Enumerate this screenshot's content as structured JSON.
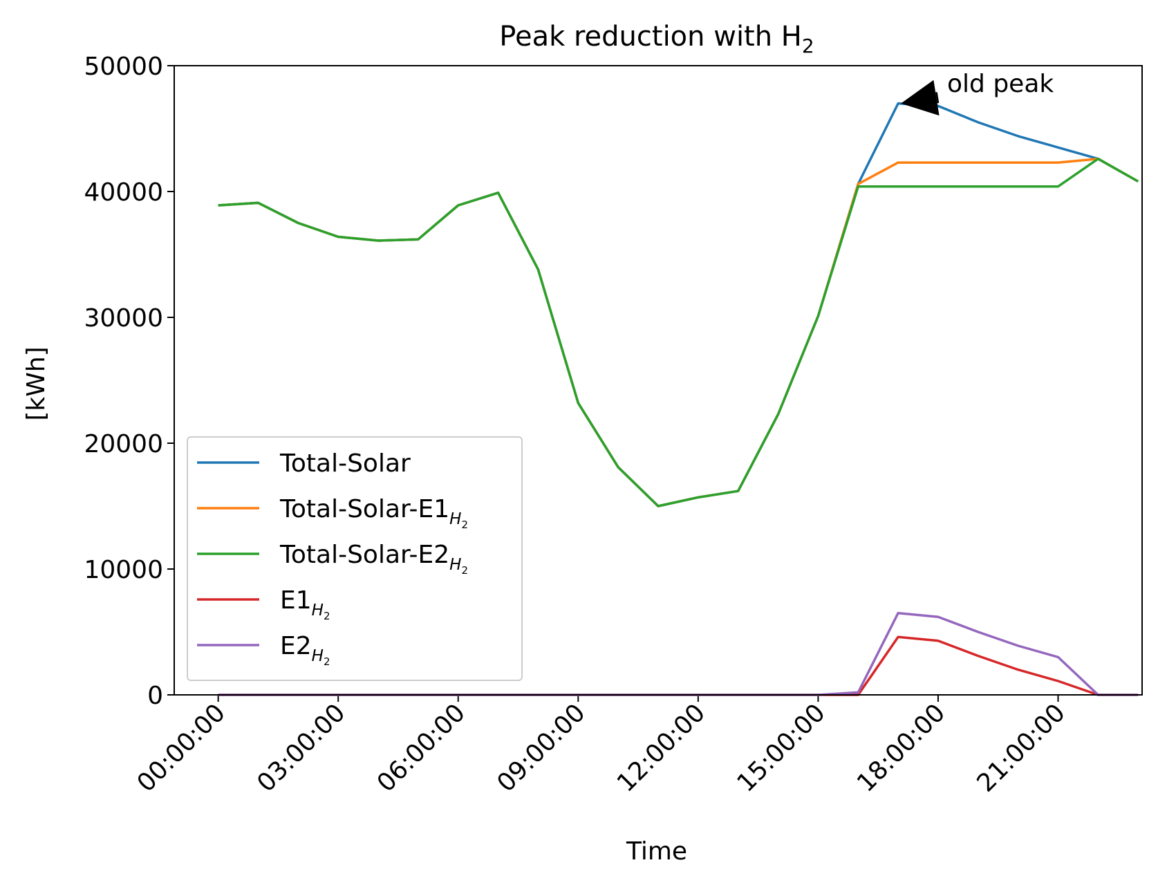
{
  "chart_data": {
    "type": "line",
    "title": "Peak reduction with H",
    "title_sub": "2",
    "xlabel": "Time",
    "ylabel": "[kWh]",
    "ylim": [
      0,
      50000
    ],
    "xlim": [
      -1.1,
      23.1
    ],
    "yticks": [
      0,
      10000,
      20000,
      30000,
      40000,
      50000
    ],
    "ytick_labels": [
      "0",
      "10000",
      "20000",
      "30000",
      "40000",
      "50000"
    ],
    "xticks": [
      0,
      3,
      6,
      9,
      12,
      15,
      18,
      21
    ],
    "xtick_labels": [
      "00:00:00",
      "03:00:00",
      "06:00:00",
      "09:00:00",
      "12:00:00",
      "15:00:00",
      "18:00:00",
      "21:00:00"
    ],
    "x": [
      0,
      1,
      2,
      3,
      4,
      5,
      6,
      7,
      8,
      9,
      10,
      11,
      12,
      13,
      14,
      15,
      16,
      17,
      18,
      19,
      20,
      21,
      22,
      23
    ],
    "series": [
      {
        "name": "Total-Solar",
        "color": "#1f77b4",
        "values": [
          38900,
          39100,
          37500,
          36400,
          36100,
          36200,
          38900,
          39900,
          33800,
          23200,
          18100,
          15000,
          15700,
          16200,
          22300,
          30100,
          40600,
          47000,
          46800,
          45500,
          44400,
          43500,
          42600,
          40800
        ]
      },
      {
        "name": "Total-Solar-E1",
        "name_sub": "H2",
        "color": "#ff7f0e",
        "values": [
          38900,
          39100,
          37500,
          36400,
          36100,
          36200,
          38900,
          39900,
          33800,
          23200,
          18100,
          15000,
          15700,
          16200,
          22300,
          30100,
          40600,
          42300,
          42300,
          42300,
          42300,
          42300,
          42600,
          40800
        ]
      },
      {
        "name": "Total-Solar-E2",
        "name_sub": "H2",
        "color": "#2ca02c",
        "values": [
          38900,
          39100,
          37500,
          36400,
          36100,
          36200,
          38900,
          39900,
          33800,
          23200,
          18100,
          15000,
          15700,
          16200,
          22300,
          30100,
          40400,
          40400,
          40400,
          40400,
          40400,
          40400,
          42600,
          40800
        ]
      },
      {
        "name": "E1",
        "name_sub": "H2",
        "color": "#d62728",
        "values": [
          0,
          0,
          0,
          0,
          0,
          0,
          0,
          0,
          0,
          0,
          0,
          0,
          0,
          0,
          0,
          0,
          0,
          4600,
          4300,
          3100,
          2000,
          1100,
          0,
          0
        ]
      },
      {
        "name": "E2",
        "name_sub": "H2",
        "color": "#9467bd",
        "values": [
          0,
          0,
          0,
          0,
          0,
          0,
          0,
          0,
          0,
          0,
          0,
          0,
          0,
          0,
          0,
          0,
          200,
          6500,
          6200,
          5000,
          3900,
          3000,
          0,
          0
        ]
      }
    ],
    "annotation": {
      "text": "old peak",
      "point": [
        17,
        47000
      ],
      "text_pos": [
        19,
        48200
      ]
    },
    "legend": "lower-left",
    "grid": false
  }
}
